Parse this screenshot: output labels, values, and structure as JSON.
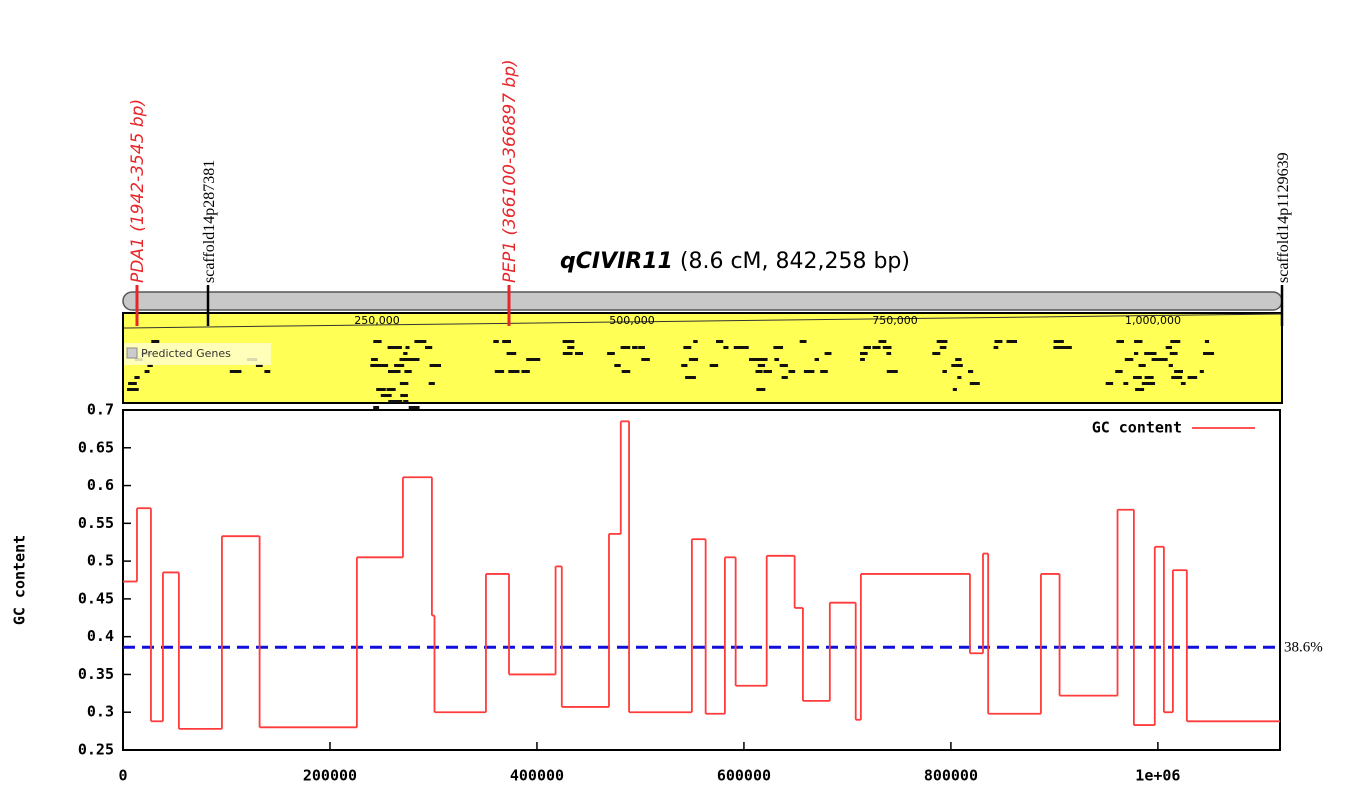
{
  "region": {
    "name": "qCIVIR11",
    "detail": "(8.6 cM, 842,258 bp)"
  },
  "markers": [
    {
      "label": "PDA1 (1942-3545 bp)",
      "color": "#e8262a"
    },
    {
      "label": "scaffold14p287381",
      "color": "#000000"
    },
    {
      "label": "PEP1 (366100-366897 bp)",
      "color": "#e8262a"
    },
    {
      "label": "scaffold14p1129639",
      "color": "#000000"
    }
  ],
  "browser": {
    "scale_labels": [
      "250,000",
      "500,000",
      "750,000",
      "1,000,000"
    ],
    "track": "Predicted Genes"
  },
  "chart_data": {
    "type": "step",
    "ylabel": "GC content",
    "x": [
      0,
      13500,
      27000,
      38600,
      54000,
      95600,
      132000,
      226000,
      270500,
      298500,
      301000,
      350700,
      373000,
      418000,
      424000,
      469600,
      481000,
      489000,
      549700,
      563000,
      581600,
      592000,
      622000,
      649000,
      657000,
      683000,
      708000,
      713000,
      818400,
      831000,
      836000,
      887000,
      905000,
      961000,
      976800,
      997000,
      1005800,
      1014500,
      1028000,
      1118000
    ],
    "series": [
      {
        "name": "GC content",
        "color": "#ff3b3b",
        "values": [
          0.473,
          0.57,
          0.288,
          0.485,
          0.278,
          0.533,
          0.28,
          0.505,
          0.611,
          0.428,
          0.3,
          0.483,
          0.35,
          0.493,
          0.307,
          0.536,
          0.685,
          0.3,
          0.529,
          0.298,
          0.505,
          0.335,
          0.507,
          0.438,
          0.315,
          0.445,
          0.29,
          0.483,
          0.378,
          0.51,
          0.298,
          0.483,
          0.322,
          0.568,
          0.283,
          0.519,
          0.3,
          0.488,
          0.288,
          0.288
        ]
      }
    ],
    "xlim": [
      0,
      1118000
    ],
    "ylim": [
      0.25,
      0.7
    ],
    "xticks": [
      0,
      200000,
      400000,
      600000,
      800000,
      {
        "value": 1000000,
        "label": "1e+06"
      }
    ],
    "yticks": [
      0.7,
      0.65,
      0.6,
      0.55,
      0.5,
      0.45,
      0.4,
      0.35,
      0.3,
      0.25
    ],
    "reference_line": {
      "value": 0.386,
      "label": "38.6%",
      "color": "#1010d8"
    },
    "legend": "upper right"
  }
}
